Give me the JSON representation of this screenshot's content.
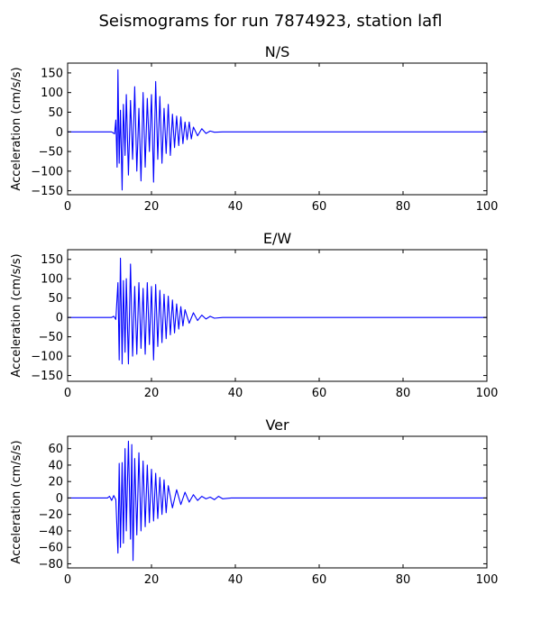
{
  "figure": {
    "title": "Seismograms for run 7874923, station lafl"
  },
  "chart_data": [
    {
      "type": "line",
      "title": "N/S",
      "xlabel": "",
      "ylabel": "Acceleration (cm/s/s)",
      "xlim": [
        0,
        100
      ],
      "ylim": [
        -160,
        175
      ],
      "xticks": [
        0,
        20,
        40,
        60,
        80,
        100
      ],
      "yticks": [
        -150,
        -100,
        -50,
        0,
        50,
        100,
        150
      ],
      "grid": false,
      "color": "#0000ff",
      "x": [
        0,
        10.5,
        11.2,
        11.5,
        11.8,
        12.0,
        12.3,
        12.6,
        13.0,
        13.3,
        13.7,
        14.0,
        14.5,
        15.0,
        15.5,
        16.0,
        16.5,
        17.0,
        17.5,
        18.0,
        18.5,
        19.0,
        19.5,
        20.0,
        20.5,
        21.0,
        21.5,
        22.0,
        22.5,
        23.0,
        23.5,
        24.0,
        24.5,
        25.0,
        25.5,
        26.0,
        26.5,
        27.0,
        27.5,
        28.0,
        28.5,
        29.0,
        29.5,
        30.0,
        31.0,
        32.0,
        33.0,
        34.0,
        35.0,
        37.0,
        40.0,
        100.0
      ],
      "y": [
        0,
        0,
        -5,
        30,
        -90,
        158,
        -80,
        55,
        -148,
        70,
        -60,
        95,
        -110,
        80,
        -70,
        115,
        -100,
        60,
        -125,
        100,
        -90,
        85,
        -50,
        95,
        -128,
        128,
        -70,
        90,
        -80,
        60,
        -55,
        70,
        -60,
        45,
        -40,
        40,
        -35,
        38,
        -30,
        25,
        -20,
        25,
        -18,
        12,
        -10,
        8,
        -4,
        2,
        -1,
        0,
        0,
        0
      ]
    },
    {
      "type": "line",
      "title": "E/W",
      "xlabel": "",
      "ylabel": "Acceleration (cm/s/s)",
      "xlim": [
        0,
        100
      ],
      "ylim": [
        -165,
        175
      ],
      "xticks": [
        0,
        20,
        40,
        60,
        80,
        100
      ],
      "yticks": [
        -150,
        -100,
        -50,
        0,
        50,
        100,
        150
      ],
      "grid": false,
      "color": "#0000ff",
      "x": [
        0,
        10.5,
        11.0,
        11.5,
        12.0,
        12.3,
        12.6,
        13.0,
        13.3,
        13.7,
        14.0,
        14.5,
        15.0,
        15.5,
        16.0,
        16.5,
        17.0,
        17.5,
        18.0,
        18.5,
        19.0,
        19.5,
        20.0,
        20.5,
        21.0,
        21.5,
        22.0,
        22.5,
        23.0,
        23.5,
        24.0,
        24.5,
        25.0,
        25.5,
        26.0,
        26.5,
        27.0,
        27.5,
        28.0,
        29.0,
        30.0,
        31.0,
        32.0,
        33.0,
        34.0,
        35.0,
        37.0,
        40.0,
        100.0
      ],
      "y": [
        0,
        0,
        3,
        -5,
        90,
        -110,
        153,
        -120,
        95,
        -90,
        100,
        -120,
        138,
        -100,
        80,
        -95,
        90,
        -80,
        75,
        -95,
        90,
        -70,
        80,
        -110,
        85,
        -75,
        70,
        -65,
        60,
        -55,
        55,
        -45,
        45,
        -40,
        35,
        -30,
        28,
        -22,
        20,
        -15,
        12,
        -8,
        6,
        -4,
        3,
        -2,
        0,
        0,
        0
      ]
    },
    {
      "type": "line",
      "title": "Ver",
      "xlabel": "",
      "ylabel": "Acceleration (cm/s/s)",
      "xlim": [
        0,
        100
      ],
      "ylim": [
        -85,
        75
      ],
      "xticks": [
        0,
        20,
        40,
        60,
        80,
        100
      ],
      "yticks": [
        -80,
        -60,
        -40,
        -20,
        0,
        20,
        40,
        60
      ],
      "grid": false,
      "color": "#0000ff",
      "x": [
        0,
        9.5,
        10.0,
        10.5,
        11.0,
        11.5,
        12.0,
        12.3,
        12.6,
        13.0,
        13.3,
        13.7,
        14.0,
        14.5,
        15.0,
        15.3,
        15.6,
        16.0,
        16.5,
        17.0,
        17.5,
        18.0,
        18.5,
        19.0,
        19.5,
        20.0,
        20.5,
        21.0,
        21.5,
        22.0,
        22.5,
        23.0,
        23.5,
        24.0,
        25.0,
        26.0,
        27.0,
        28.0,
        29.0,
        30.0,
        31.0,
        32.0,
        33.0,
        34.0,
        35.0,
        36.0,
        37.0,
        39.0,
        100.0
      ],
      "y": [
        0,
        0,
        2,
        -3,
        3,
        -2,
        -67,
        42,
        -60,
        43,
        -55,
        60,
        -40,
        69,
        -50,
        65,
        -76,
        48,
        -45,
        55,
        -40,
        45,
        -35,
        40,
        -30,
        35,
        -28,
        30,
        -25,
        25,
        -20,
        22,
        -18,
        15,
        -12,
        10,
        -8,
        7,
        -5,
        4,
        -3,
        2,
        -1,
        1,
        -2,
        2,
        -1,
        0,
        0
      ]
    }
  ]
}
